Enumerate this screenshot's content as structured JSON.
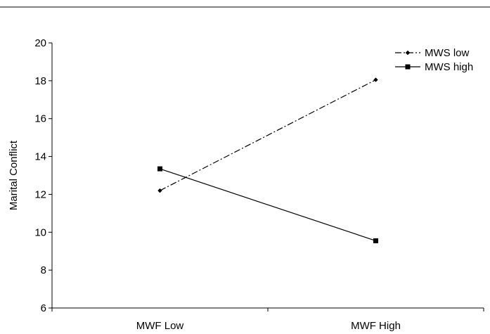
{
  "chart_data": {
    "type": "line",
    "title": "",
    "xlabel": "",
    "ylabel": "Marital Conflict",
    "categories": [
      "MWF Low",
      "MWF High"
    ],
    "ylim": [
      6,
      20
    ],
    "yticks": [
      6,
      8,
      10,
      12,
      14,
      16,
      18,
      20
    ],
    "grid": false,
    "legend_position": "top-right",
    "series": [
      {
        "name": "MWS low",
        "values": [
          12.2,
          18.05
        ],
        "line_style": "dash-dot",
        "marker": "diamond",
        "color": "#000000"
      },
      {
        "name": "MWS high",
        "values": [
          13.35,
          9.55
        ],
        "line_style": "solid",
        "marker": "square",
        "color": "#000000"
      }
    ]
  }
}
